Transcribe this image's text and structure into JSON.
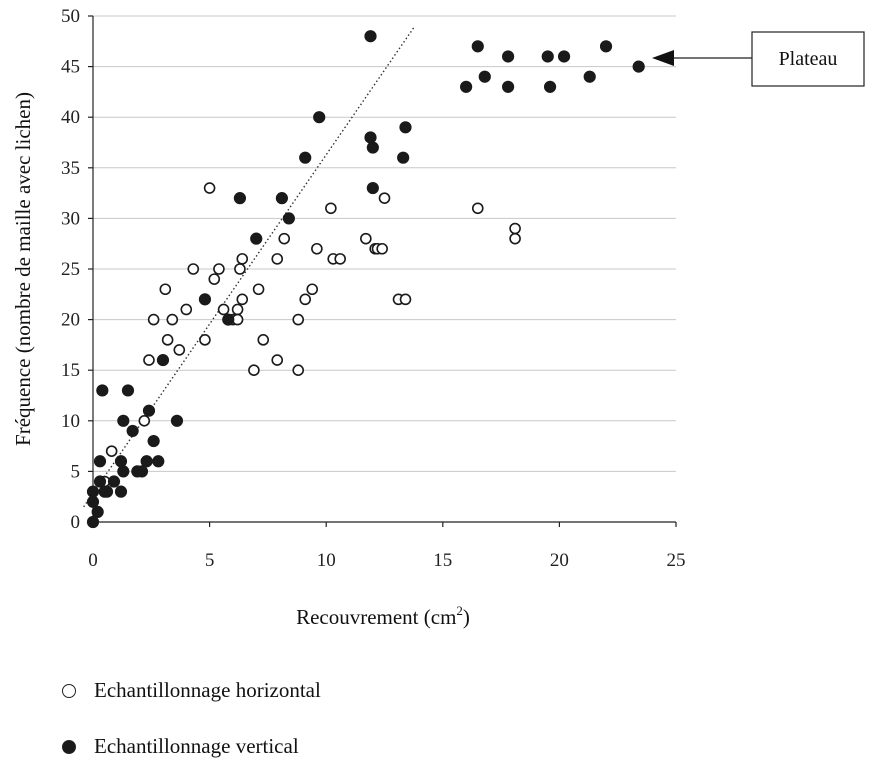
{
  "chart_data": {
    "type": "scatter",
    "xlabel": "Recouvrement (cm",
    "xlabel_sup": "2",
    "xlabel_end": ")",
    "ylabel": "Fréquence (nombre de maille avec lichen)",
    "xlim": [
      0,
      25
    ],
    "ylim": [
      0,
      50
    ],
    "xticks": [
      0,
      5,
      10,
      15,
      20,
      25
    ],
    "yticks": [
      0,
      5,
      10,
      15,
      20,
      25,
      30,
      35,
      40,
      45,
      50
    ],
    "grid": "horizontal",
    "legend_position": "bottom",
    "annotation": {
      "text": "Plateau",
      "points_to": [
        23.5,
        45.5
      ]
    },
    "trendline": {
      "style": "dotted",
      "points": [
        [
          -0.4,
          1.5
        ],
        [
          13.8,
          49
        ]
      ]
    },
    "series": [
      {
        "name": "Echantillonnage horizontal",
        "marker": "open-circle",
        "points": [
          [
            0.8,
            7
          ],
          [
            0.5,
            4
          ],
          [
            2.2,
            10
          ],
          [
            2.4,
            16
          ],
          [
            2.6,
            20
          ],
          [
            3.1,
            23
          ],
          [
            3.2,
            18
          ],
          [
            3.4,
            20
          ],
          [
            3.7,
            17
          ],
          [
            4.0,
            21
          ],
          [
            4.3,
            25
          ],
          [
            4.8,
            18
          ],
          [
            5.0,
            33
          ],
          [
            5.2,
            24
          ],
          [
            5.4,
            25
          ],
          [
            5.6,
            21
          ],
          [
            6.0,
            20
          ],
          [
            6.2,
            21
          ],
          [
            6.2,
            20
          ],
          [
            6.3,
            25
          ],
          [
            6.4,
            22
          ],
          [
            6.4,
            26
          ],
          [
            6.9,
            15
          ],
          [
            7.1,
            23
          ],
          [
            7.3,
            18
          ],
          [
            7.9,
            26
          ],
          [
            7.9,
            16
          ],
          [
            8.2,
            28
          ],
          [
            8.8,
            15
          ],
          [
            8.8,
            20
          ],
          [
            9.1,
            22
          ],
          [
            9.4,
            23
          ],
          [
            9.6,
            27
          ],
          [
            10.2,
            31
          ],
          [
            10.3,
            26
          ],
          [
            10.6,
            26
          ],
          [
            11.7,
            28
          ],
          [
            12.1,
            27
          ],
          [
            12.2,
            27
          ],
          [
            12.4,
            27
          ],
          [
            12.5,
            32
          ],
          [
            13.1,
            22
          ],
          [
            13.4,
            22
          ],
          [
            16.5,
            31
          ],
          [
            18.1,
            29
          ],
          [
            18.1,
            28
          ]
        ]
      },
      {
        "name": "Echantillonnage vertical",
        "marker": "filled-circle",
        "points": [
          [
            0.0,
            0
          ],
          [
            0.0,
            2
          ],
          [
            0.0,
            3
          ],
          [
            0.2,
            1
          ],
          [
            0.3,
            4
          ],
          [
            0.3,
            6
          ],
          [
            0.4,
            13
          ],
          [
            0.5,
            3
          ],
          [
            0.6,
            3
          ],
          [
            0.9,
            4
          ],
          [
            1.2,
            3
          ],
          [
            1.2,
            6
          ],
          [
            1.3,
            10
          ],
          [
            1.3,
            5
          ],
          [
            1.5,
            13
          ],
          [
            1.7,
            9
          ],
          [
            1.9,
            5
          ],
          [
            2.1,
            5
          ],
          [
            2.3,
            6
          ],
          [
            2.4,
            11
          ],
          [
            2.6,
            8
          ],
          [
            2.8,
            6
          ],
          [
            3.0,
            16
          ],
          [
            3.6,
            10
          ],
          [
            4.8,
            22
          ],
          [
            5.8,
            20
          ],
          [
            6.3,
            32
          ],
          [
            7.0,
            28
          ],
          [
            8.1,
            32
          ],
          [
            8.4,
            30
          ],
          [
            9.1,
            36
          ],
          [
            9.7,
            40
          ],
          [
            11.9,
            38
          ],
          [
            11.9,
            48
          ],
          [
            12.0,
            37
          ],
          [
            12.0,
            33
          ],
          [
            13.3,
            36
          ],
          [
            13.4,
            39
          ],
          [
            16.0,
            43
          ],
          [
            16.5,
            47
          ],
          [
            16.8,
            44
          ],
          [
            17.8,
            46
          ],
          [
            17.8,
            43
          ],
          [
            19.5,
            46
          ],
          [
            19.6,
            43
          ],
          [
            20.2,
            46
          ],
          [
            21.3,
            44
          ],
          [
            22.0,
            47
          ],
          [
            23.4,
            45
          ]
        ]
      }
    ]
  },
  "callout": {
    "label": "Plateau"
  },
  "legend": {
    "horizontal_label": "Echantillonnage horizontal",
    "vertical_label": "Echantillonnage vertical"
  }
}
